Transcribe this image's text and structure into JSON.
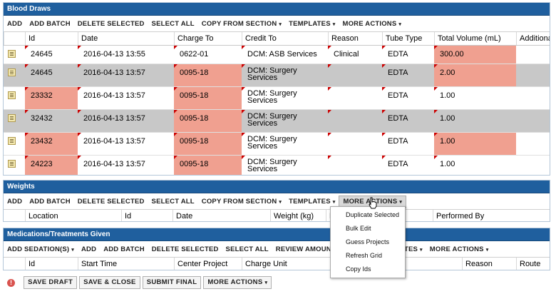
{
  "blood": {
    "title": "Blood Draws",
    "toolbar": [
      {
        "label": "ADD",
        "menu": false
      },
      {
        "label": "ADD BATCH",
        "menu": false
      },
      {
        "label": "DELETE SELECTED",
        "menu": false
      },
      {
        "label": "SELECT ALL",
        "menu": false
      },
      {
        "label": "COPY FROM SECTION",
        "menu": true
      },
      {
        "label": "TEMPLATES",
        "menu": true
      },
      {
        "label": "MORE ACTIONS",
        "menu": true
      }
    ],
    "columns": [
      "",
      "Id",
      "Date",
      "Charge To",
      "Credit To",
      "Reason",
      "Tube Type",
      "Total Volume (mL)",
      "Additiona"
    ],
    "rows": [
      {
        "id": "24645",
        "date": "2016-04-13 13:55",
        "charge": "0622-01",
        "credit": "DCM: ASB Services",
        "reason": "Clinical",
        "tube": "EDTA",
        "volume": "300.00"
      },
      {
        "id": "24645",
        "date": "2016-04-13 13:57",
        "charge": "0095-18",
        "credit": "DCM: Surgery Services",
        "reason": "",
        "tube": "EDTA",
        "volume": "2.00"
      },
      {
        "id": "23332",
        "date": "2016-04-13 13:57",
        "charge": "0095-18",
        "credit": "DCM: Surgery Services",
        "reason": "",
        "tube": "EDTA",
        "volume": "1.00"
      },
      {
        "id": "32432",
        "date": "2016-04-13 13:57",
        "charge": "0095-18",
        "credit": "DCM: Surgery Services",
        "reason": "",
        "tube": "EDTA",
        "volume": "1.00"
      },
      {
        "id": "23432",
        "date": "2016-04-13 13:57",
        "charge": "0095-18",
        "credit": "DCM: Surgery Services",
        "reason": "",
        "tube": "EDTA",
        "volume": "1.00"
      },
      {
        "id": "24223",
        "date": "2016-04-13 13:57",
        "charge": "0095-18",
        "credit": "DCM: Surgery Services",
        "reason": "",
        "tube": "EDTA",
        "volume": "1.00"
      }
    ]
  },
  "weights": {
    "title": "Weights",
    "toolbar": [
      {
        "label": "ADD",
        "menu": false
      },
      {
        "label": "ADD BATCH",
        "menu": false
      },
      {
        "label": "DELETE SELECTED",
        "menu": false
      },
      {
        "label": "SELECT ALL",
        "menu": false
      },
      {
        "label": "COPY FROM SECTION",
        "menu": true
      },
      {
        "label": "TEMPLATES",
        "menu": true
      },
      {
        "label": "MORE ACTIONS",
        "menu": true
      }
    ],
    "columns": [
      "Location",
      "Id",
      "Date",
      "Weight (kg)",
      "R",
      "Performed By"
    ]
  },
  "more_actions_menu": [
    "Duplicate Selected",
    "Bulk Edit",
    "Guess Projects",
    "Refresh Grid",
    "Copy Ids"
  ],
  "meds": {
    "title": "Medications/Treatments Given",
    "toolbar": [
      {
        "label": "ADD SEDATION(S)",
        "menu": true
      },
      {
        "label": "ADD",
        "menu": false
      },
      {
        "label": "ADD BATCH",
        "menu": false
      },
      {
        "label": "DELETE SELECTED",
        "menu": false
      },
      {
        "label": "SELECT ALL",
        "menu": false
      },
      {
        "label": "REVIEW AMOUNT",
        "menu": false
      },
      {
        "label": "ATION",
        "menu": true
      },
      {
        "label": "TEMPLATES",
        "menu": true
      },
      {
        "label": "MORE ACTIONS",
        "menu": true
      }
    ],
    "columns": [
      "Id",
      "Start Time",
      "Center Project",
      "Charge Unit",
      "Reason",
      "Route"
    ]
  },
  "footer": {
    "error_icon": "!",
    "buttons": [
      {
        "label": "SAVE DRAFT",
        "menu": false
      },
      {
        "label": "SAVE & CLOSE",
        "menu": false
      },
      {
        "label": "SUBMIT FINAL",
        "menu": false
      },
      {
        "label": "MORE ACTIONS",
        "menu": true
      }
    ]
  },
  "caret": "▾",
  "colors": {
    "header": "#1f5f9e",
    "error_cell": "#f0a090",
    "selected_row": "#c8c8c8"
  }
}
